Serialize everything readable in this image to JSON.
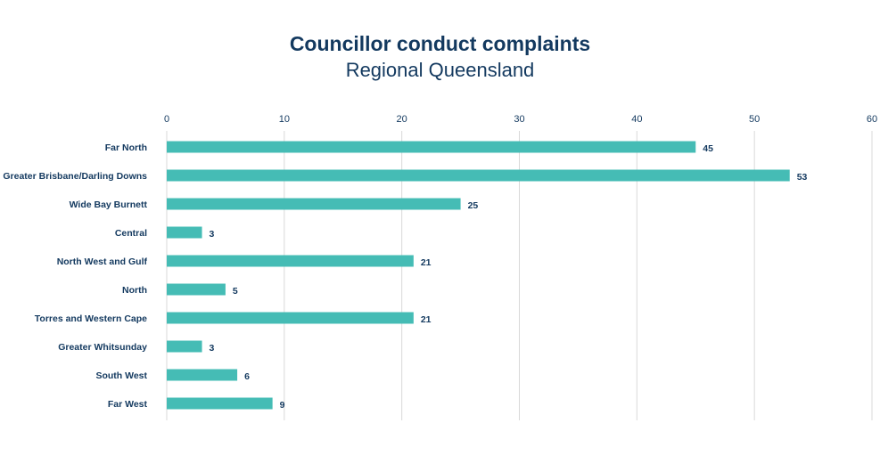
{
  "chart_data": {
    "type": "bar",
    "orientation": "horizontal",
    "title": "Councillor conduct complaints",
    "subtitle": "Regional Queensland",
    "categories": [
      "Far North",
      "Greater Brisbane/Darling Downs",
      "Wide Bay Burnett",
      "Central",
      "North West and Gulf",
      "North",
      "Torres and Western Cape",
      "Greater Whitsunday",
      "South West",
      "Far West"
    ],
    "values": [
      45,
      53,
      25,
      3,
      21,
      5,
      21,
      3,
      6,
      9
    ],
    "xlim": [
      0,
      60
    ],
    "xticks": [
      0,
      10,
      20,
      30,
      40,
      50,
      60
    ],
    "xaxis_position": "top",
    "grid": true,
    "data_labels": true,
    "bar_color": "#45bcb5",
    "text_color": "#13395f",
    "grid_color": "#d9d9d9"
  }
}
